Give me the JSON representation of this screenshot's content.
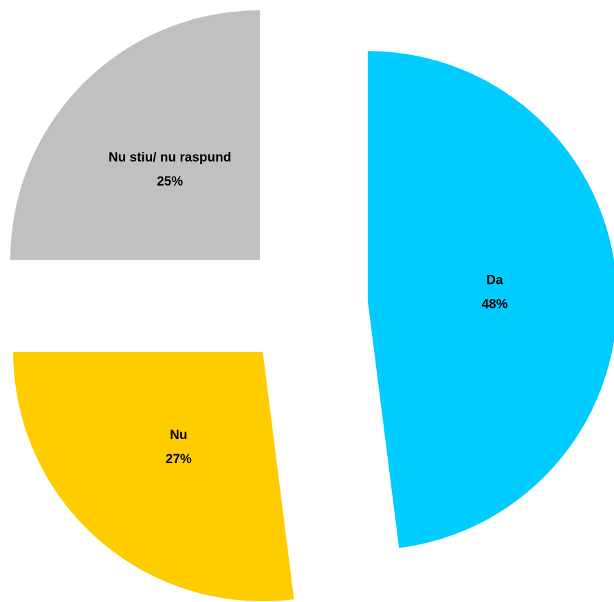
{
  "chart_data": {
    "type": "pie",
    "categories": [
      "Da",
      "Nu",
      "Nu stiu/ nu raspund"
    ],
    "values": [
      48,
      27,
      25
    ],
    "value_labels": [
      "48%",
      "27%",
      "25%"
    ],
    "colors": [
      "#00ccff",
      "#ffcc00",
      "#c0c0c0"
    ],
    "exploded": true
  }
}
